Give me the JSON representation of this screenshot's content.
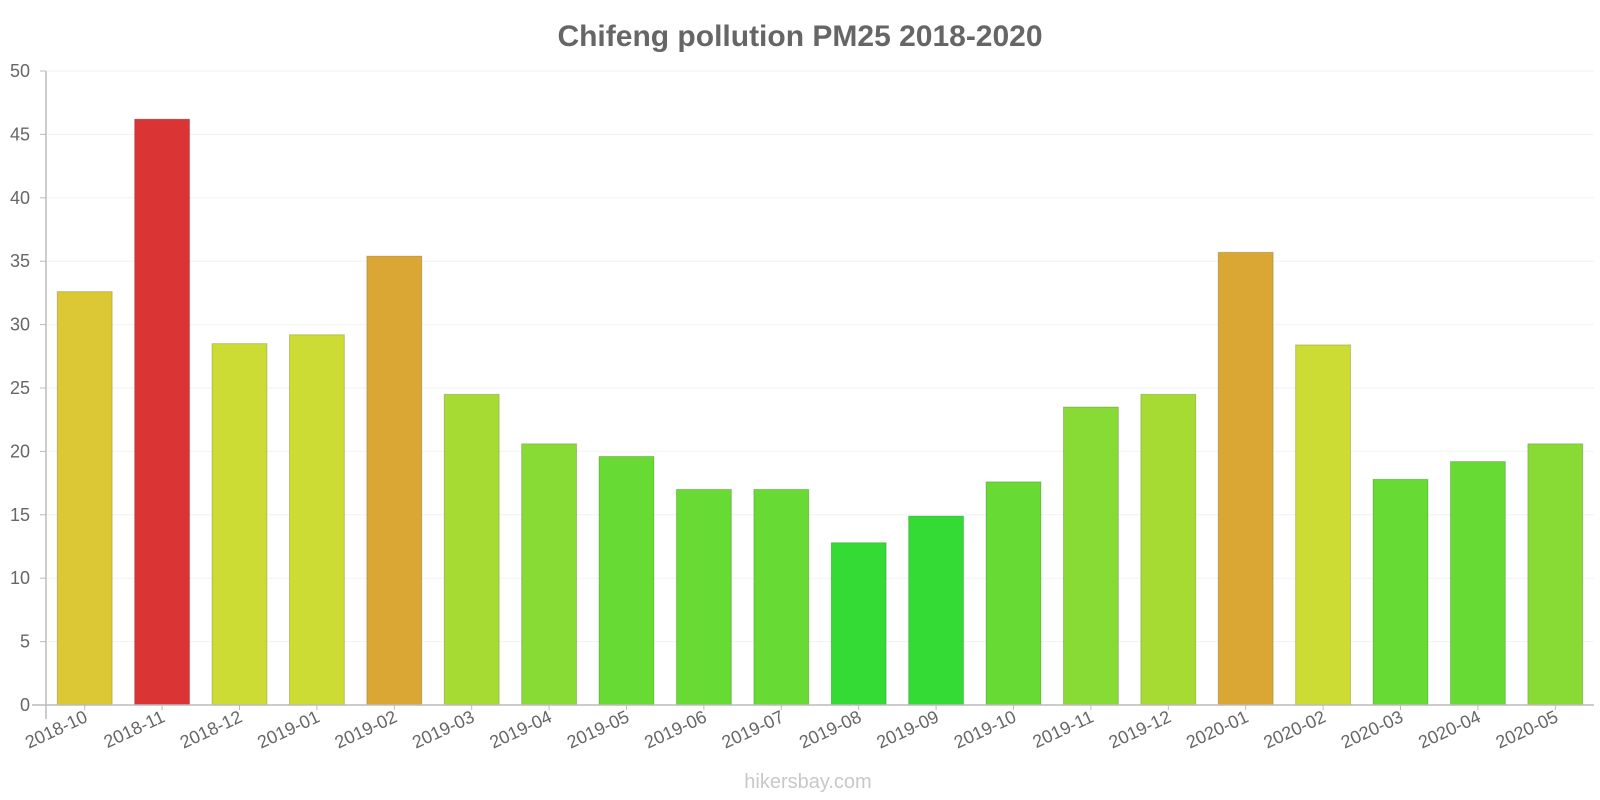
{
  "chart_data": {
    "type": "bar",
    "title": "Chifeng pollution PM25 2018-2020",
    "xlabel": "",
    "ylabel": "",
    "ylim": [
      0,
      50
    ],
    "yticks": [
      0,
      5,
      10,
      15,
      20,
      25,
      30,
      35,
      40,
      45,
      50
    ],
    "grid": true,
    "categories": [
      "2018-10",
      "2018-11",
      "2018-12",
      "2019-01",
      "2019-02",
      "2019-03",
      "2019-04",
      "2019-05",
      "2019-06",
      "2019-07",
      "2019-08",
      "2019-09",
      "2019-10",
      "2019-11",
      "2019-12",
      "2020-01",
      "2020-02",
      "2020-03",
      "2020-04",
      "2020-05"
    ],
    "values": [
      32.6,
      46.2,
      28.5,
      29.2,
      35.4,
      24.5,
      20.6,
      19.6,
      17.0,
      17.0,
      12.8,
      14.9,
      17.6,
      23.5,
      24.5,
      35.7,
      28.4,
      17.8,
      19.2,
      20.6
    ],
    "colors": [
      "#dbc834",
      "#db3434",
      "#cddc34",
      "#cddc34",
      "#dba734",
      "#a6db34",
      "#88db34",
      "#67db34",
      "#67db34",
      "#67db34",
      "#34db34",
      "#34db34",
      "#67db34",
      "#88db34",
      "#a6db34",
      "#dba734",
      "#cddc34",
      "#67db34",
      "#67db34",
      "#88db34"
    ]
  },
  "watermark": "hikersbay.com"
}
